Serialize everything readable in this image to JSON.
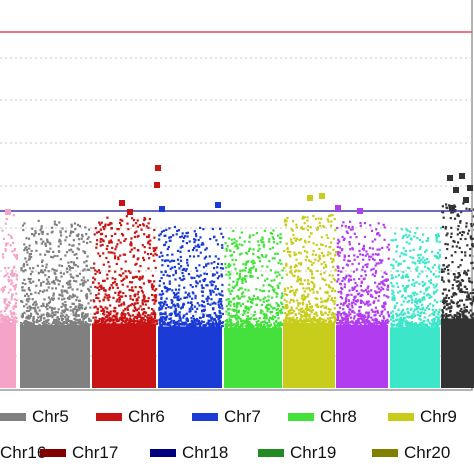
{
  "chart_data": {
    "type": "scatter",
    "title": "",
    "xlabel": "",
    "ylabel": "",
    "grid": "horizontal-dotted",
    "reference_lines": [
      {
        "name": "upper threshold",
        "color": "#e8475b"
      },
      {
        "name": "lower threshold",
        "color": "#3a3aa8"
      }
    ],
    "series": [
      {
        "name": "",
        "color": "#f5a3c7"
      },
      {
        "name": "",
        "color": "#808080"
      },
      {
        "name": "",
        "color": "#c81414"
      },
      {
        "name": "",
        "color": "#1a3bd6"
      },
      {
        "name": "",
        "color": "#44e03c"
      },
      {
        "name": "",
        "color": "#c8cc1a"
      },
      {
        "name": "",
        "color": "#b23cf0"
      },
      {
        "name": "",
        "color": "#3ce6c8"
      },
      {
        "name": "",
        "color": "#333333"
      }
    ],
    "legend": {
      "row1": [
        {
          "label": "Chr5",
          "color": "#808080"
        },
        {
          "label": "Chr6",
          "color": "#c81414"
        },
        {
          "label": "Chr7",
          "color": "#1a3bd6"
        },
        {
          "label": "Chr8",
          "color": "#44e03c"
        },
        {
          "label": "Chr9",
          "color": "#c8cc1a"
        }
      ],
      "row2": [
        {
          "label": "Chr16",
          "color": "#000000"
        },
        {
          "label": "Chr17",
          "color": "#800000"
        },
        {
          "label": "Chr18",
          "color": "#000080"
        },
        {
          "label": "Chr19",
          "color": "#228b22"
        },
        {
          "label": "Chr20",
          "color": "#808000"
        }
      ]
    }
  }
}
